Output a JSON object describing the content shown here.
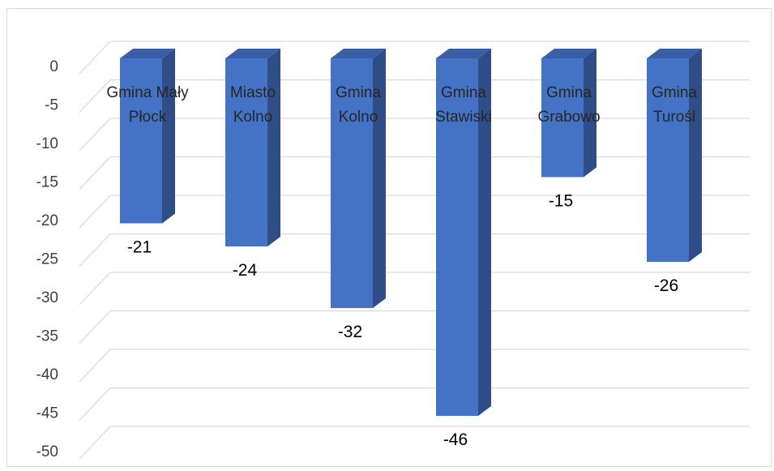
{
  "chart_data": {
    "type": "bar",
    "style": "3d-column",
    "categories": [
      "Gmina Mały Płock",
      "Miasto Kolno",
      "Gmina Kolno",
      "Gmina Stawiski",
      "Gmina Grabowo",
      "Gmina Turośl"
    ],
    "category_lines": [
      [
        "Gmina Mały",
        "Płock"
      ],
      [
        "Miasto",
        "Kolno"
      ],
      [
        "Gmina",
        "Kolno"
      ],
      [
        "Gmina",
        "Stawiski"
      ],
      [
        "Gmina",
        "Grabowo"
      ],
      [
        "Gmina",
        "Turośl"
      ]
    ],
    "values": [
      -21,
      -24,
      -32,
      -46,
      -15,
      -26
    ],
    "data_labels": [
      "-21",
      "-24",
      "-32",
      "-46",
      "-15",
      "-26"
    ],
    "yticks": [
      0,
      -5,
      -10,
      -15,
      -20,
      -25,
      -30,
      -35,
      -40,
      -45,
      -50
    ],
    "ylim": [
      -50,
      0
    ],
    "grid": true,
    "legend": "none",
    "colors": {
      "bar_front": "#4472c4",
      "bar_side": "#2f4d86",
      "bar_top": "#3a5fa6",
      "grid": "#d9d9d9"
    }
  }
}
